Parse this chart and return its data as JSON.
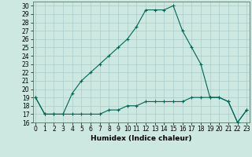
{
  "title": "",
  "xlabel": "Humidex (Indice chaleur)",
  "ylabel": "",
  "bg_color": "#cce8e0",
  "grid_color": "#aacccc",
  "line_color": "#006655",
  "x_upper": [
    0,
    1,
    2,
    3,
    4,
    5,
    6,
    7,
    8,
    9,
    10,
    11,
    12,
    13,
    14,
    15,
    16,
    17,
    18,
    19,
    20,
    21,
    22,
    23
  ],
  "y_upper": [
    19,
    17,
    17,
    17,
    19.5,
    21,
    22,
    23,
    24,
    25,
    26,
    27.5,
    29.5,
    29.5,
    29.5,
    30,
    27,
    25,
    23,
    19,
    19,
    18.5,
    16,
    17.5
  ],
  "x_lower": [
    0,
    1,
    2,
    3,
    4,
    5,
    6,
    7,
    8,
    9,
    10,
    11,
    12,
    13,
    14,
    15,
    16,
    17,
    18,
    19,
    20,
    21,
    22,
    23
  ],
  "y_lower": [
    19,
    17,
    17,
    17,
    17,
    17,
    17,
    17,
    17.5,
    17.5,
    18,
    18,
    18.5,
    18.5,
    18.5,
    18.5,
    18.5,
    19,
    19,
    19,
    19,
    18.5,
    16,
    17.5
  ],
  "xlim": [
    -0.3,
    23.3
  ],
  "ylim": [
    16,
    30.5
  ],
  "yticks": [
    16,
    17,
    18,
    19,
    20,
    21,
    22,
    23,
    24,
    25,
    26,
    27,
    28,
    29,
    30
  ],
  "xticks": [
    0,
    1,
    2,
    3,
    4,
    5,
    6,
    7,
    8,
    9,
    10,
    11,
    12,
    13,
    14,
    15,
    16,
    17,
    18,
    19,
    20,
    21,
    22,
    23
  ],
  "marker": "+",
  "markersize": 3,
  "linewidth": 0.8,
  "tick_fontsize": 5.5,
  "xlabel_fontsize": 6.5
}
